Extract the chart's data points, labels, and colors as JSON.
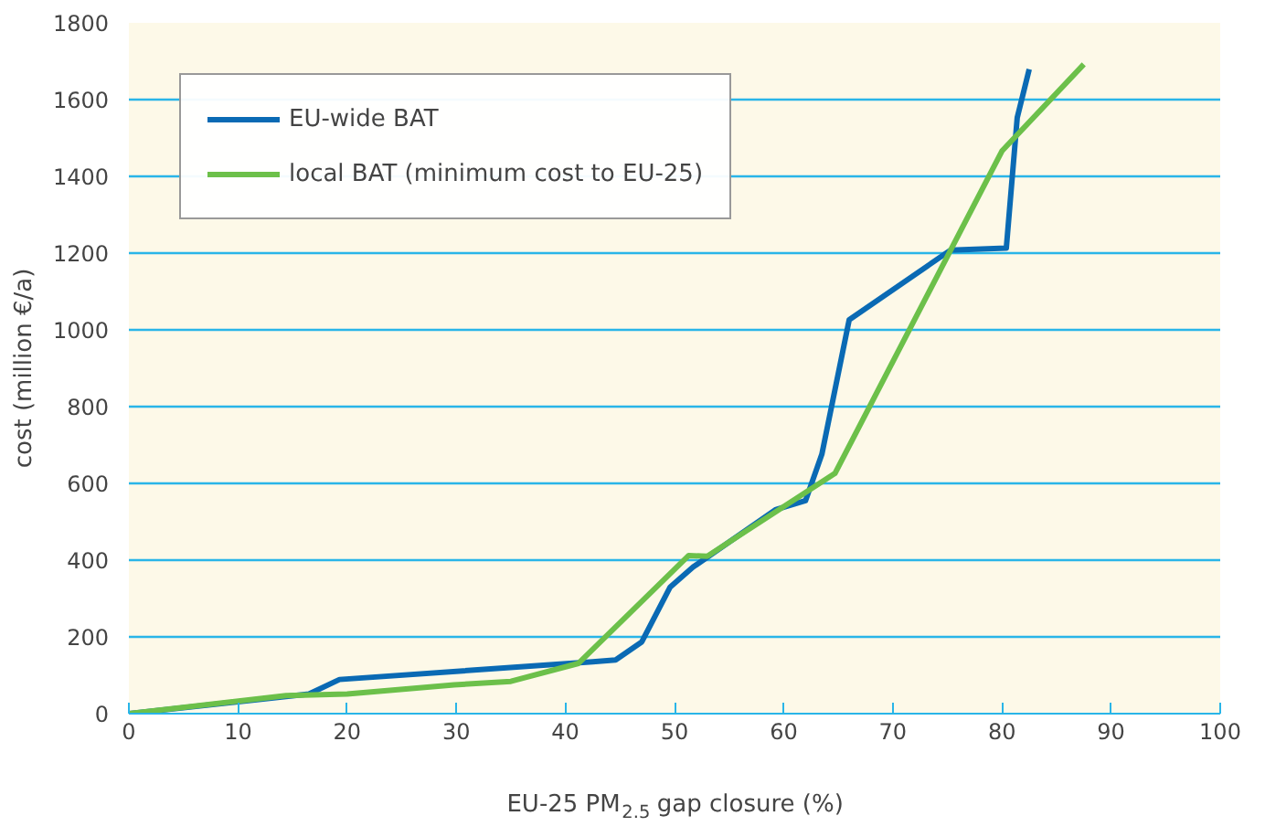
{
  "chart_data": {
    "type": "line",
    "xlabel": "EU-25 PM$_{2.5}$ gap closure (%)",
    "ylabel": "cost (million €/a)",
    "xlim": [
      0,
      100
    ],
    "xticks": [
      0,
      10,
      20,
      30,
      40,
      50,
      60,
      70,
      80,
      90,
      100
    ],
    "ylim": [
      0,
      1800
    ],
    "yticks": [
      0,
      200,
      400,
      600,
      800,
      1000,
      1200,
      1400,
      1600,
      1800
    ],
    "grid": "y",
    "legend": "top left",
    "marker": "none",
    "line_style": "solid",
    "series": [
      {
        "name": "EU-wide BAT",
        "color": "#0a6ab4",
        "x": [
          0,
          16.5,
          19.3,
          42.5,
          44.6,
          47,
          49.6,
          51.7,
          59.3,
          62,
          63.5,
          66,
          75.3,
          80.4,
          81.4,
          82.5
        ],
        "values": [
          0,
          51,
          89,
          135,
          140,
          187,
          330,
          382,
          532,
          555,
          676,
          1026,
          1208,
          1213,
          1553,
          1679
        ]
      },
      {
        "name": "local BAT (minimum cost to EU-25)",
        "color": "#6cc04a",
        "x": [
          0,
          14.4,
          20,
          29.8,
          35,
          41.2,
          51.3,
          53,
          64.7,
          80,
          87.5
        ],
        "values": [
          0,
          47,
          51,
          75,
          84,
          131,
          412,
          410,
          626,
          1466,
          1692
        ]
      }
    ]
  }
}
